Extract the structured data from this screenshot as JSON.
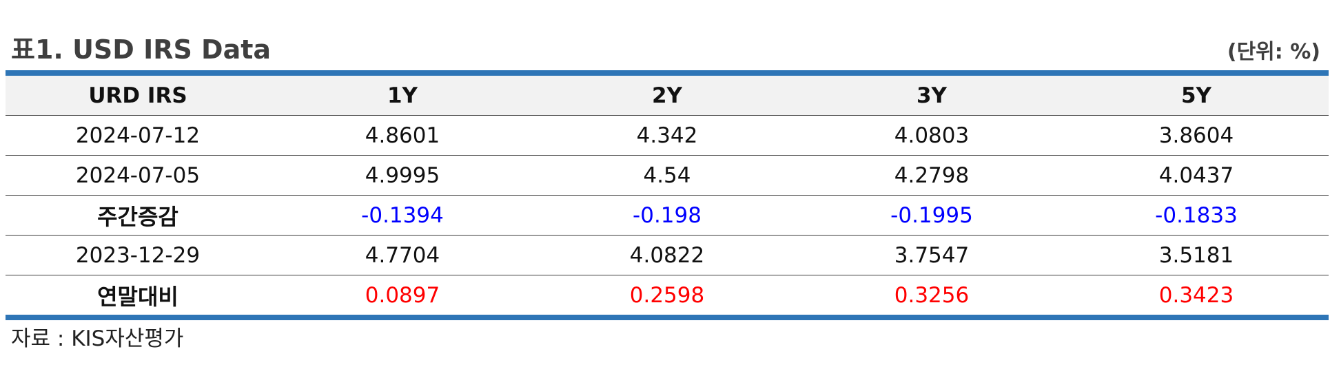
{
  "title": "표1. USD IRS Data",
  "unit": "(단위: %)",
  "table": {
    "headers": [
      "URD IRS",
      "1Y",
      "2Y",
      "3Y",
      "5Y"
    ],
    "rows": [
      {
        "label": "2024-07-12",
        "values": [
          "4.8601",
          "4.342",
          "4.0803",
          "3.8604"
        ],
        "type": "data",
        "color": "#111111"
      },
      {
        "label": "2024-07-05",
        "values": [
          "4.9995",
          "4.54",
          "4.2798",
          "4.0437"
        ],
        "type": "data",
        "color": "#111111"
      },
      {
        "label": "주간증감",
        "values": [
          "-0.1394",
          "-0.198",
          "-0.1995",
          "-0.1833"
        ],
        "type": "summary",
        "color": "#0000ff"
      },
      {
        "label": "2023-12-29",
        "values": [
          "4.7704",
          "4.0822",
          "3.7547",
          "3.5181"
        ],
        "type": "data",
        "color": "#111111"
      },
      {
        "label": "연말대비",
        "values": [
          "0.0897",
          "0.2598",
          "0.3256",
          "0.3423"
        ],
        "type": "summary",
        "color": "#ff0000"
      }
    ]
  },
  "source": "자료 : KIS자산평가",
  "colors": {
    "accent_rule": "#2e75b6",
    "header_bg": "#f2f2f2",
    "negative": "#0000ff",
    "positive": "#ff0000"
  }
}
